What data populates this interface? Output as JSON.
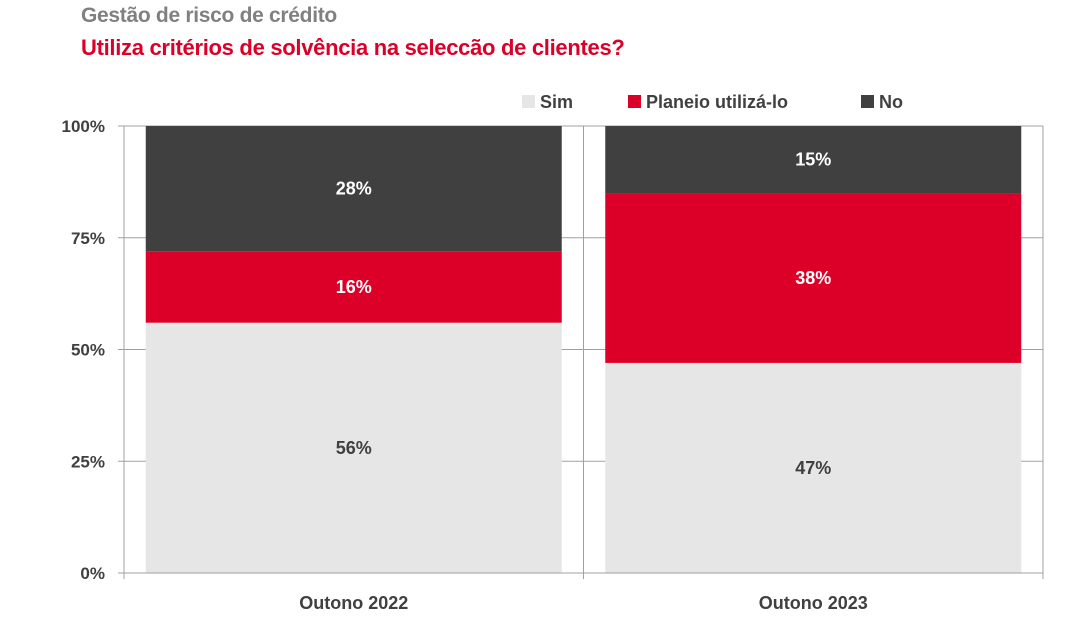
{
  "header": {
    "title": "Gestão de risco de crédito",
    "subtitle": "Utiliza critérios de solvência na seleccão de clientes?"
  },
  "colors": {
    "Sim": "#e6e6e6",
    "Planeio utilizá-lo": "#dc0028",
    "No": "#404040",
    "axis": "#a0a0a0",
    "title": "#808080",
    "subtitle": "#dc0028"
  },
  "chart_data": {
    "type": "bar",
    "stacked": true,
    "title": "Gestão de risco de crédito",
    "subtitle": "Utiliza critérios de solvência na seleccão de clientes?",
    "categories": [
      "Outono 2022",
      "Outono 2023"
    ],
    "series": [
      {
        "name": "Sim",
        "values": [
          56,
          47
        ],
        "labels": [
          "56%",
          "47%"
        ]
      },
      {
        "name": "Planeio utilizá-lo",
        "values": [
          16,
          38
        ],
        "labels": [
          "16%",
          "38%"
        ]
      },
      {
        "name": "No",
        "values": [
          28,
          15
        ],
        "labels": [
          "28%",
          "15%"
        ]
      }
    ],
    "ylim": [
      0,
      100
    ],
    "yticks": [
      0,
      25,
      50,
      75,
      100
    ],
    "ytick_labels": [
      "0%",
      "25%",
      "50%",
      "75%",
      "100%"
    ],
    "legend": [
      "Sim",
      "Planeio utilizá-lo",
      "No"
    ],
    "legend_position": "top-right",
    "grid": true,
    "xlabel": "",
    "ylabel": ""
  }
}
